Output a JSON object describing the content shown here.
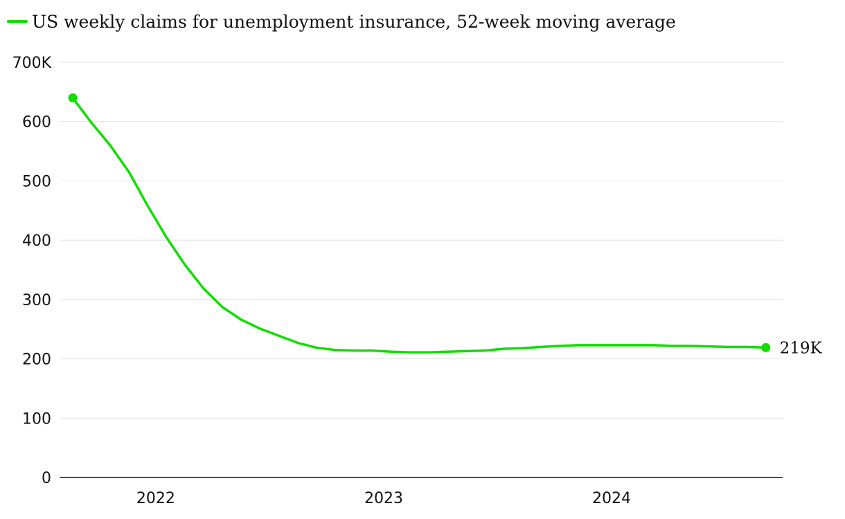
{
  "chart_data": {
    "type": "line",
    "legend_position": "top-left",
    "grid": true,
    "ylim": [
      0,
      700
    ],
    "y_ticks": [
      {
        "value": 0,
        "label": "0"
      },
      {
        "value": 100,
        "label": "100"
      },
      {
        "value": 200,
        "label": "200"
      },
      {
        "value": 300,
        "label": "300"
      },
      {
        "value": 400,
        "label": "400"
      },
      {
        "value": 500,
        "label": "500"
      },
      {
        "value": 600,
        "label": "600"
      },
      {
        "value": 700,
        "label": "700K"
      }
    ],
    "xlim": [
      "2021-08-01",
      "2024-10-01"
    ],
    "x_ticks": [
      {
        "value": "2022-01-01",
        "label": "2022"
      },
      {
        "value": "2023-01-01",
        "label": "2023"
      },
      {
        "value": "2024-01-01",
        "label": "2024"
      }
    ],
    "series": [
      {
        "name": "US weekly claims for unemployment insurance, 52-week moving average",
        "color": "#11dd00",
        "end_label": "219K",
        "points": [
          {
            "x": "2021-08-21",
            "y": 640
          },
          {
            "x": "2021-09-20",
            "y": 598
          },
          {
            "x": "2021-10-20",
            "y": 560
          },
          {
            "x": "2021-11-19",
            "y": 515
          },
          {
            "x": "2021-12-19",
            "y": 458
          },
          {
            "x": "2022-01-18",
            "y": 405
          },
          {
            "x": "2022-02-17",
            "y": 358
          },
          {
            "x": "2022-03-19",
            "y": 318
          },
          {
            "x": "2022-04-18",
            "y": 287
          },
          {
            "x": "2022-05-18",
            "y": 266
          },
          {
            "x": "2022-06-17",
            "y": 251
          },
          {
            "x": "2022-07-17",
            "y": 239
          },
          {
            "x": "2022-08-16",
            "y": 227
          },
          {
            "x": "2022-09-15",
            "y": 219
          },
          {
            "x": "2022-10-15",
            "y": 215
          },
          {
            "x": "2022-11-14",
            "y": 214
          },
          {
            "x": "2022-12-14",
            "y": 214
          },
          {
            "x": "2023-01-13",
            "y": 212
          },
          {
            "x": "2023-02-12",
            "y": 211
          },
          {
            "x": "2023-03-14",
            "y": 211
          },
          {
            "x": "2023-04-13",
            "y": 212
          },
          {
            "x": "2023-05-13",
            "y": 213
          },
          {
            "x": "2023-06-12",
            "y": 214
          },
          {
            "x": "2023-07-12",
            "y": 217
          },
          {
            "x": "2023-08-11",
            "y": 218
          },
          {
            "x": "2023-09-10",
            "y": 220
          },
          {
            "x": "2023-10-10",
            "y": 222
          },
          {
            "x": "2023-11-09",
            "y": 223
          },
          {
            "x": "2023-12-09",
            "y": 223
          },
          {
            "x": "2024-01-08",
            "y": 223
          },
          {
            "x": "2024-02-07",
            "y": 223
          },
          {
            "x": "2024-03-08",
            "y": 223
          },
          {
            "x": "2024-04-07",
            "y": 222
          },
          {
            "x": "2024-05-07",
            "y": 222
          },
          {
            "x": "2024-06-06",
            "y": 221
          },
          {
            "x": "2024-07-06",
            "y": 220
          },
          {
            "x": "2024-08-05",
            "y": 220
          },
          {
            "x": "2024-09-04",
            "y": 219
          }
        ]
      }
    ]
  }
}
